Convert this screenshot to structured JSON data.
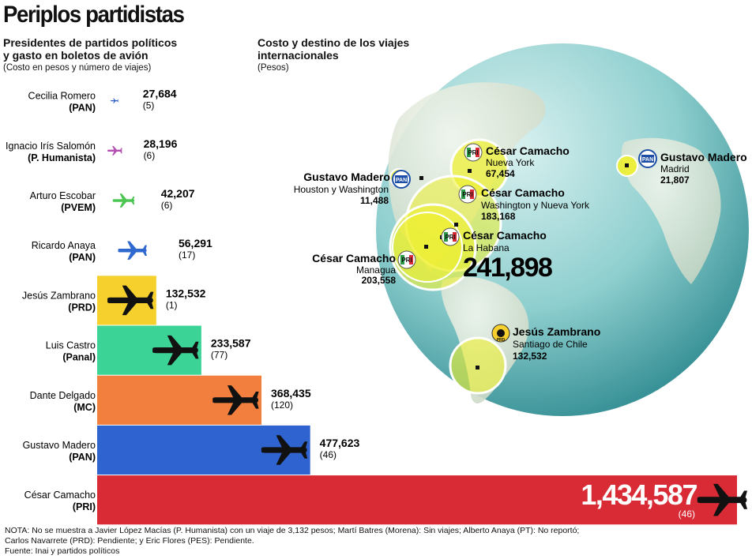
{
  "title": "Periplos partidistas",
  "left_panel": {
    "subtitle_line1": "Presidentes de partidos políticos",
    "subtitle_line2": "y gasto en boletos de avión",
    "subtitle_note": "(Costo en pesos y número de viajes)"
  },
  "right_panel": {
    "subtitle_line1": "Costo y destino de los viajes",
    "subtitle_line2": "internacionales",
    "subtitle_note": "(Pesos)"
  },
  "chart_data": [
    {
      "type": "bar",
      "orientation": "horizontal",
      "categories": [
        "Cecilia Romero (PAN)",
        "Ignacio Irís Salomón (P. Humanista)",
        "Arturo Escobar (PVEM)",
        "Ricardo Anaya (PAN)",
        "Jesús Zambrano (PRD)",
        "Luis Castro (Panal)",
        "Dante Delgado (MC)",
        "Gustavo Madero (PAN)",
        "César Camacho (PRI)"
      ],
      "rows": [
        {
          "name": "Cecilia Romero",
          "party": "(PAN)",
          "value": 27684,
          "value_label": "27,684",
          "trips": "(5)",
          "color": "#2f5fc4"
        },
        {
          "name": "Ignacio Irís Salomón",
          "party": "(P. Humanista)",
          "value": 28196,
          "value_label": "28,196",
          "trips": "(6)",
          "color": "#b34fb0"
        },
        {
          "name": "Arturo Escobar",
          "party": "(PVEM)",
          "value": 42207,
          "value_label": "42,207",
          "trips": "(6)",
          "color": "#4cc552"
        },
        {
          "name": "Ricardo Anaya",
          "party": "(PAN)",
          "value": 56291,
          "value_label": "56,291",
          "trips": "(17)",
          "color": "#2f68cf"
        },
        {
          "name": "Jesús Zambrano",
          "party": "(PRD)",
          "value": 132532,
          "value_label": "132,532",
          "trips": "(1)",
          "color": "#f6d02c"
        },
        {
          "name": "Luis Castro",
          "party": "(Panal)",
          "value": 233587,
          "value_label": "233,587",
          "trips": "(77)",
          "color": "#3bd396"
        },
        {
          "name": "Dante Delgado",
          "party": "(MC)",
          "value": 368435,
          "value_label": "368,435",
          "trips": "(120)",
          "color": "#f27f3d"
        },
        {
          "name": "Gustavo Madero",
          "party": "(PAN)",
          "value": 477623,
          "value_label": "477,623",
          "trips": "(46)",
          "color": "#2f63d0"
        },
        {
          "name": "César Camacho",
          "party": "(PRI)",
          "value": 1434587,
          "value_label": "1,434,587",
          "trips": "(46)",
          "color": "#d92b36"
        }
      ],
      "values": [
        27684,
        28196,
        42207,
        56291,
        132532,
        233587,
        368435,
        477623,
        1434587
      ],
      "trips": [
        5,
        6,
        6,
        17,
        1,
        77,
        120,
        46,
        46
      ]
    },
    {
      "type": "bubble-map",
      "destinations": [
        {
          "name": "César Camacho",
          "place": "Nueva York",
          "value": 67454,
          "value_label": "67,454",
          "party": "PRI"
        },
        {
          "name": "Gustavo Madero",
          "place": "Houston y Washington",
          "value": 11488,
          "value_label": "11,488",
          "party": "PAN"
        },
        {
          "name": "César Camacho",
          "place": "Washington y Nueva York",
          "value": 183168,
          "value_label": "183,168",
          "party": "PRI"
        },
        {
          "name": "César Camacho",
          "place": "La Habana",
          "value": 241898,
          "value_label": "241,898",
          "party": "PRI"
        },
        {
          "name": "César Camacho",
          "place": "Managua",
          "value": 203558,
          "value_label": "203,558",
          "party": "PRI"
        },
        {
          "name": "Gustavo Madero",
          "place": "Madrid",
          "value": 21807,
          "value_label": "21,807",
          "party": "PAN"
        },
        {
          "name": "Jesús Zambrano",
          "place": "Santiago de Chile",
          "value": 132532,
          "value_label": "132,532",
          "party": "PRD"
        }
      ]
    }
  ],
  "logos": {
    "pan": "PAN",
    "pri": "PRI",
    "prd": "PRD"
  },
  "icons": {
    "bar_marker": "airplane-icon",
    "pan_logo": "pan-logo-icon",
    "pri_logo": "pri-logo-icon",
    "prd_logo": "prd-logo-icon"
  },
  "notes": {
    "line1": "NOTA: No se muestra a Javier López Macías (P. Humanista) con un viaje de 3,132 pesos; Martí Batres (Morena): Sin viajes; Alberto Anaya (PT): No reportó;",
    "line2": "Carlos Navarrete (PRD): Pendiente; y Eric Flores (PES): Pendiente.",
    "line3": "Fuente: Inai y partidos políticos"
  }
}
